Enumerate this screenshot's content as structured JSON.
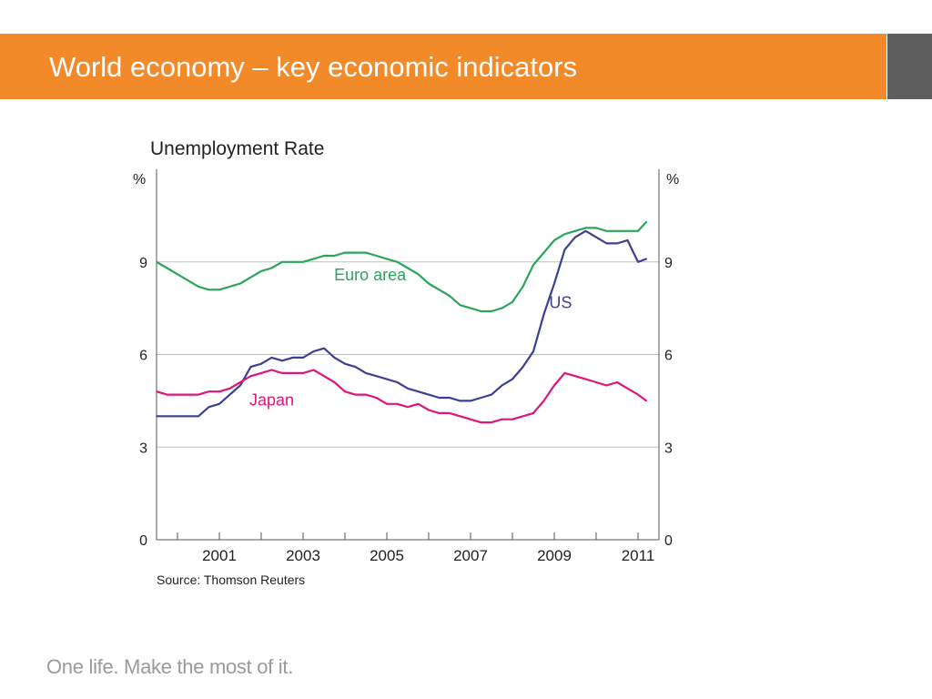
{
  "header": {
    "title": "World economy – key economic indicators"
  },
  "chart_data": {
    "type": "line",
    "title": "Unemployment Rate",
    "y_unit_label": "%",
    "ylim": [
      0,
      12
    ],
    "yticks": [
      0,
      3,
      6,
      9
    ],
    "xlim": [
      1999.5,
      2011.5
    ],
    "xticks": [
      2000,
      2001,
      2002,
      2003,
      2004,
      2005,
      2006,
      2007,
      2008,
      2009,
      2010,
      2011
    ],
    "xtick_labels": [
      "2001",
      "2003",
      "2005",
      "2007",
      "2009",
      "2011"
    ],
    "xtick_label_positions": [
      2001,
      2003,
      2005,
      2007,
      2009,
      2011
    ],
    "grid": "horizontal",
    "source": "Source: Thomson Reuters",
    "series": [
      {
        "name": "Euro area",
        "color": "#2aa55a",
        "x": [
          1999.5,
          1999.75,
          2000.0,
          2000.25,
          2000.5,
          2000.75,
          2001.0,
          2001.25,
          2001.5,
          2001.75,
          2002.0,
          2002.25,
          2002.5,
          2002.75,
          2003.0,
          2003.25,
          2003.5,
          2003.75,
          2004.0,
          2004.25,
          2004.5,
          2004.75,
          2005.0,
          2005.25,
          2005.5,
          2005.75,
          2006.0,
          2006.25,
          2006.5,
          2006.75,
          2007.0,
          2007.25,
          2007.5,
          2007.75,
          2008.0,
          2008.25,
          2008.5,
          2008.75,
          2009.0,
          2009.25,
          2009.5,
          2009.75,
          2010.0,
          2010.25,
          2010.5,
          2010.75,
          2011.0,
          2011.2
        ],
        "y": [
          9.0,
          8.8,
          8.6,
          8.4,
          8.2,
          8.1,
          8.1,
          8.2,
          8.3,
          8.5,
          8.7,
          8.8,
          9.0,
          9.0,
          9.0,
          9.1,
          9.2,
          9.2,
          9.3,
          9.3,
          9.3,
          9.2,
          9.1,
          9.0,
          8.8,
          8.6,
          8.3,
          8.1,
          7.9,
          7.6,
          7.5,
          7.4,
          7.4,
          7.5,
          7.7,
          8.2,
          8.9,
          9.3,
          9.7,
          9.9,
          10.0,
          10.1,
          10.1,
          10.0,
          10.0,
          10.0,
          10.0,
          10.3
        ]
      },
      {
        "name": "US",
        "color": "#3d3f94",
        "x": [
          1999.5,
          1999.75,
          2000.0,
          2000.25,
          2000.5,
          2000.75,
          2001.0,
          2001.25,
          2001.5,
          2001.75,
          2002.0,
          2002.25,
          2002.5,
          2002.75,
          2003.0,
          2003.25,
          2003.5,
          2003.75,
          2004.0,
          2004.25,
          2004.5,
          2004.75,
          2005.0,
          2005.25,
          2005.5,
          2005.75,
          2006.0,
          2006.25,
          2006.5,
          2006.75,
          2007.0,
          2007.25,
          2007.5,
          2007.75,
          2008.0,
          2008.25,
          2008.5,
          2008.75,
          2009.0,
          2009.25,
          2009.5,
          2009.75,
          2010.0,
          2010.25,
          2010.5,
          2010.75,
          2011.0,
          2011.2
        ],
        "y": [
          4.0,
          4.0,
          4.0,
          4.0,
          4.0,
          4.3,
          4.4,
          4.7,
          5.0,
          5.6,
          5.7,
          5.9,
          5.8,
          5.9,
          5.9,
          6.1,
          6.2,
          5.9,
          5.7,
          5.6,
          5.4,
          5.3,
          5.2,
          5.1,
          4.9,
          4.8,
          4.7,
          4.6,
          4.6,
          4.5,
          4.5,
          4.6,
          4.7,
          5.0,
          5.2,
          5.6,
          6.1,
          7.3,
          8.3,
          9.4,
          9.8,
          10.0,
          9.8,
          9.6,
          9.6,
          9.7,
          9.0,
          9.1
        ]
      },
      {
        "name": "Japan",
        "color": "#e0147a",
        "x": [
          1999.5,
          1999.75,
          2000.0,
          2000.25,
          2000.5,
          2000.75,
          2001.0,
          2001.25,
          2001.5,
          2001.75,
          2002.0,
          2002.25,
          2002.5,
          2002.75,
          2003.0,
          2003.25,
          2003.5,
          2003.75,
          2004.0,
          2004.25,
          2004.5,
          2004.75,
          2005.0,
          2005.25,
          2005.5,
          2005.75,
          2006.0,
          2006.25,
          2006.5,
          2006.75,
          2007.0,
          2007.25,
          2007.5,
          2007.75,
          2008.0,
          2008.25,
          2008.5,
          2008.75,
          2009.0,
          2009.25,
          2009.5,
          2009.75,
          2010.0,
          2010.25,
          2010.5,
          2010.75,
          2011.0,
          2011.2
        ],
        "y": [
          4.8,
          4.7,
          4.7,
          4.7,
          4.7,
          4.8,
          4.8,
          4.9,
          5.1,
          5.3,
          5.4,
          5.5,
          5.4,
          5.4,
          5.4,
          5.5,
          5.3,
          5.1,
          4.8,
          4.7,
          4.7,
          4.6,
          4.4,
          4.4,
          4.3,
          4.4,
          4.2,
          4.1,
          4.1,
          4.0,
          3.9,
          3.8,
          3.8,
          3.9,
          3.9,
          4.0,
          4.1,
          4.5,
          5.0,
          5.4,
          5.3,
          5.2,
          5.1,
          5.0,
          5.1,
          4.9,
          4.7,
          4.5
        ]
      }
    ],
    "annotations": [
      {
        "text": "Euro area",
        "color": "#2aa55a",
        "x": 2004.6,
        "y": 8.4
      },
      {
        "text": "US",
        "color": "#3d3f94",
        "x": 2009.15,
        "y": 7.5
      },
      {
        "text": "Japan",
        "color": "#e0147a",
        "x": 2002.25,
        "y": 4.35
      }
    ]
  },
  "footer": {
    "tagline": "One life. Make the most of it."
  }
}
